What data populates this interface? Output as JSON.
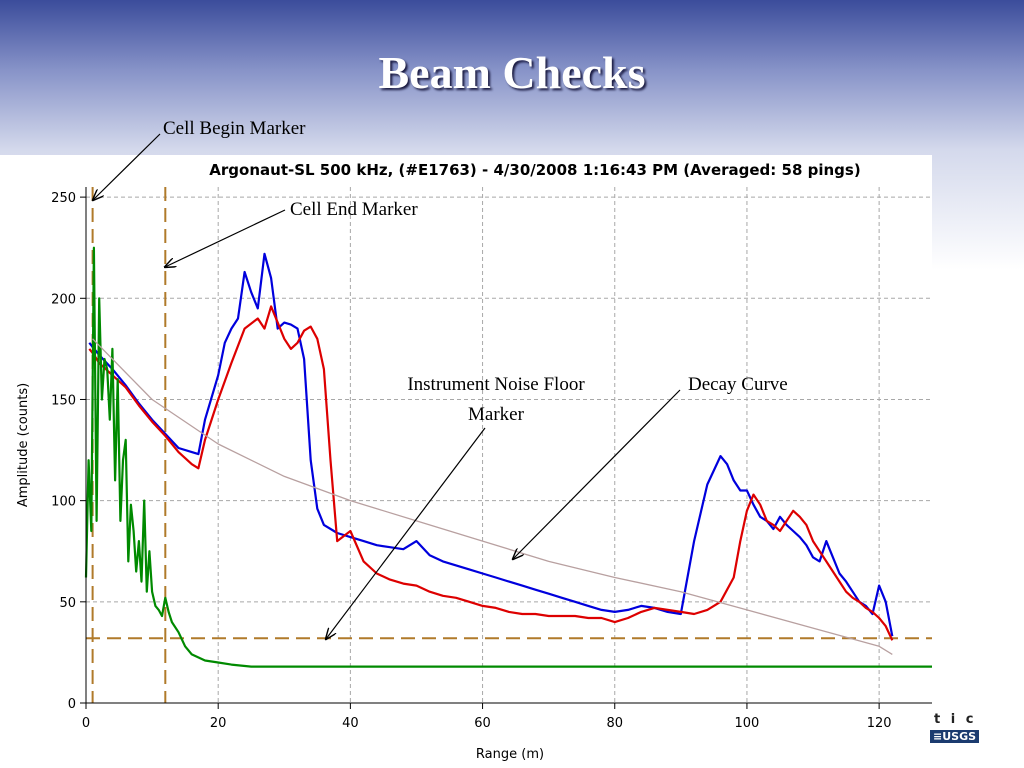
{
  "slide": {
    "title": "Beam Checks"
  },
  "logo": {
    "text": "t i c s",
    "usgs": "≡USGS"
  },
  "annotations": {
    "cell_begin": "Cell Begin Marker",
    "cell_end": "Cell End Marker",
    "noise_floor_line1": "Instrument Noise Floor",
    "noise_floor_line2": "Marker",
    "decay_curve": "Decay Curve"
  },
  "chart_data": {
    "type": "line",
    "title": "Argonaut-SL 500 kHz, (#E1763)  -  4/30/2008 1:16:43 PM (Averaged: 58 pings)",
    "xlabel": "Range (m)",
    "ylabel": "Amplitude (counts)",
    "xlim": [
      0,
      128
    ],
    "ylim": [
      0,
      255
    ],
    "x_ticks": [
      0,
      20,
      40,
      60,
      80,
      100,
      120
    ],
    "y_ticks": [
      0,
      50,
      100,
      150,
      200,
      250
    ],
    "grid": true,
    "legend": "none",
    "markers": {
      "cell_begin_x": 1,
      "cell_end_x": 12,
      "noise_floor_y": 32
    },
    "series": [
      {
        "color": "#0000dd",
        "x": [
          0.5,
          1,
          2,
          4,
          6,
          8,
          10,
          12,
          14,
          16,
          17,
          18,
          20,
          21,
          22,
          23,
          24,
          25,
          26,
          27,
          28,
          29,
          30,
          31,
          32,
          33,
          34,
          35,
          36,
          38,
          40,
          42,
          44,
          46,
          48,
          50,
          52,
          54,
          56,
          58,
          60,
          62,
          64,
          66,
          68,
          70,
          72,
          74,
          76,
          78,
          80,
          82,
          84,
          86,
          88,
          90,
          92,
          94,
          96,
          97,
          98,
          99,
          100,
          101,
          102,
          103,
          104,
          105,
          106,
          107,
          108,
          109,
          110,
          111,
          112,
          113,
          114,
          115,
          116,
          117,
          118,
          119,
          120,
          121,
          122
        ],
        "values": [
          178,
          176,
          172,
          165,
          157,
          148,
          140,
          133,
          126,
          124,
          123,
          140,
          162,
          178,
          185,
          190,
          213,
          203,
          195,
          222,
          210,
          185,
          188,
          187,
          185,
          170,
          120,
          96,
          88,
          84,
          82,
          80,
          78,
          77,
          76,
          80,
          73,
          70,
          68,
          66,
          64,
          62,
          60,
          58,
          56,
          54,
          52,
          50,
          48,
          46,
          45,
          46,
          48,
          47,
          45,
          44,
          80,
          108,
          122,
          118,
          110,
          105,
          105,
          98,
          92,
          90,
          86,
          92,
          88,
          85,
          82,
          78,
          72,
          70,
          80,
          72,
          64,
          60,
          55,
          50,
          48,
          44,
          58,
          50,
          33
        ]
      },
      {
        "color": "#dd0000",
        "x": [
          0.5,
          1,
          2,
          4,
          6,
          8,
          10,
          12,
          14,
          16,
          17,
          18,
          20,
          22,
          24,
          26,
          27,
          28,
          29,
          30,
          31,
          32,
          33,
          34,
          35,
          36,
          37,
          38,
          40,
          42,
          44,
          46,
          48,
          50,
          52,
          54,
          56,
          58,
          60,
          62,
          64,
          66,
          68,
          70,
          72,
          74,
          76,
          78,
          80,
          82,
          84,
          86,
          88,
          90,
          92,
          94,
          96,
          98,
          99,
          100,
          101,
          102,
          103,
          104,
          105,
          106,
          107,
          108,
          109,
          110,
          111,
          112,
          113,
          114,
          115,
          116,
          117,
          118,
          119,
          120,
          121,
          122
        ],
        "values": [
          175,
          173,
          168,
          162,
          156,
          147,
          139,
          132,
          124,
          118,
          116,
          130,
          150,
          168,
          185,
          190,
          185,
          196,
          188,
          180,
          175,
          178,
          184,
          186,
          180,
          165,
          120,
          80,
          85,
          70,
          64,
          61,
          59,
          58,
          55,
          53,
          52,
          50,
          48,
          47,
          45,
          44,
          44,
          43,
          43,
          43,
          42,
          42,
          40,
          42,
          45,
          47,
          46,
          45,
          44,
          46,
          50,
          62,
          80,
          95,
          103,
          98,
          90,
          88,
          85,
          90,
          95,
          92,
          88,
          80,
          75,
          70,
          65,
          60,
          55,
          52,
          50,
          47,
          45,
          42,
          38,
          31
        ]
      },
      {
        "color": "#008a00",
        "x": [
          0,
          0.4,
          0.8,
          1.2,
          1.6,
          2,
          2.4,
          2.8,
          3.2,
          3.6,
          4,
          4.4,
          4.8,
          5.2,
          5.6,
          6,
          6.4,
          6.8,
          7.2,
          7.6,
          8,
          8.4,
          8.8,
          9.2,
          9.6,
          10,
          10.5,
          11,
          11.5,
          12,
          12.5,
          13,
          14,
          15,
          16,
          18,
          20,
          22,
          25,
          30,
          40,
          60,
          80,
          100,
          120,
          128
        ],
        "values": [
          62,
          120,
          85,
          225,
          90,
          200,
          150,
          170,
          165,
          140,
          175,
          110,
          160,
          90,
          120,
          130,
          70,
          98,
          85,
          65,
          80,
          60,
          100,
          55,
          75,
          55,
          48,
          46,
          43,
          52,
          45,
          40,
          35,
          28,
          24,
          21,
          20,
          19,
          18,
          18,
          18,
          18,
          18,
          18,
          18,
          18
        ]
      },
      {
        "color": "#b8a0a0",
        "x": [
          1,
          10,
          20,
          30,
          40,
          50,
          60,
          70,
          80,
          90,
          100,
          110,
          120,
          122
        ],
        "values": [
          180,
          150,
          128,
          112,
          100,
          90,
          80,
          70,
          62,
          55,
          46,
          37,
          28,
          24
        ]
      }
    ]
  }
}
